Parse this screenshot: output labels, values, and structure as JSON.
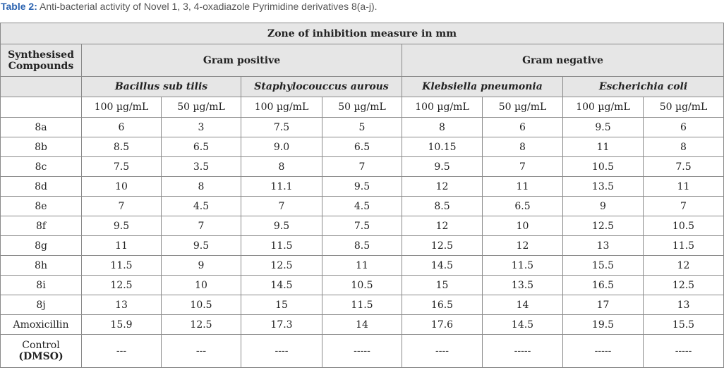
{
  "caption": {
    "label": "Table 2:",
    "text": " Anti-bacterial activity of Novel 1, 3, 4-oxadiazole Pyrimidine derivatives 8(a-j)."
  },
  "table": {
    "title": "Zone of inhibition measure in mm",
    "row_header": "Synthesised Compounds",
    "groups": [
      "Gram positive",
      "Gram negative"
    ],
    "organisms": [
      "Bacillus sub tilis",
      "Staphylocouccus aurous",
      "Klebsiella pneumonia",
      "Escherichia coli"
    ],
    "units": [
      "100 µg/mL",
      "50 µg/mL",
      "100 µg/mL",
      "50 µg/mL",
      "100 µg/mL",
      "50 µg/mL",
      "100 µg/mL",
      "50 µg/mL"
    ],
    "rows": [
      {
        "label": "8a",
        "cells": [
          "6",
          "3",
          "7.5",
          "5",
          "8",
          "6",
          "9.5",
          "6"
        ]
      },
      {
        "label": "8b",
        "cells": [
          "8.5",
          "6.5",
          "9.0",
          "6.5",
          "10.15",
          "8",
          "11",
          "8"
        ]
      },
      {
        "label": "8c",
        "cells": [
          "7.5",
          "3.5",
          "8",
          "7",
          "9.5",
          "7",
          "10.5",
          "7.5"
        ]
      },
      {
        "label": "8d",
        "cells": [
          "10",
          "8",
          "11.1",
          "9.5",
          "12",
          "11",
          "13.5",
          "11"
        ]
      },
      {
        "label": "8e",
        "cells": [
          "7",
          "4.5",
          "7",
          "4.5",
          "8.5",
          "6.5",
          "9",
          "7"
        ]
      },
      {
        "label": "8f",
        "cells": [
          "9.5",
          "7",
          "9.5",
          "7.5",
          "12",
          "10",
          "12.5",
          "10.5"
        ]
      },
      {
        "label": "8g",
        "cells": [
          "11",
          "9.5",
          "11.5",
          "8.5",
          "12.5",
          "12",
          "13",
          "11.5"
        ]
      },
      {
        "label": "8h",
        "cells": [
          "11.5",
          "9",
          "12.5",
          "11",
          "14.5",
          "11.5",
          "15.5",
          "12"
        ]
      },
      {
        "label": "8i",
        "cells": [
          "12.5",
          "10",
          "14.5",
          "10.5",
          "15",
          "13.5",
          "16.5",
          "12.5"
        ]
      },
      {
        "label": "8j",
        "cells": [
          "13",
          "10.5",
          "15",
          "11.5",
          "16.5",
          "14",
          "17",
          "13"
        ]
      },
      {
        "label": "Amoxicillin",
        "cells": [
          "15.9",
          "12.5",
          "17.3",
          "14",
          "17.6",
          "14.5",
          "19.5",
          "15.5"
        ]
      },
      {
        "label": "Control",
        "label_note": "(DMSO)",
        "cells": [
          "---",
          "---",
          "----",
          "-----",
          "----",
          "-----",
          "-----",
          "-----"
        ]
      }
    ]
  }
}
